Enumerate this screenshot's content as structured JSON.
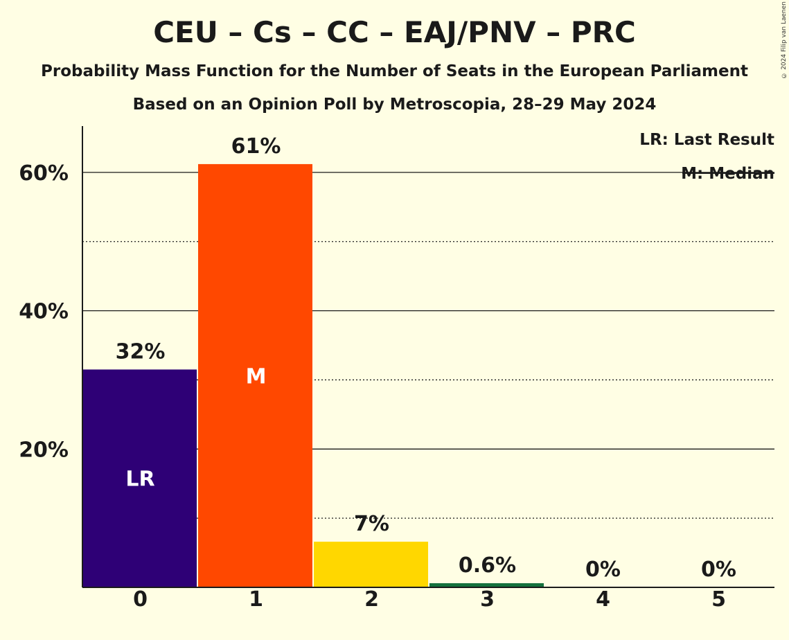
{
  "header": {
    "title": "CEU – Cs – CC – EAJ/PNV – PRC",
    "subtitle": "Probability Mass Function for the Number of Seats in the European Parliament",
    "subtitle2": "Based on an Opinion Poll by Metroscopia, 28–29 May 2024",
    "copyright": "© 2024 Filip van Laenen"
  },
  "legend": {
    "last_result": "LR: Last Result",
    "median": "M: Median"
  },
  "chart_data": {
    "type": "bar",
    "categories": [
      "0",
      "1",
      "2",
      "3",
      "4",
      "5"
    ],
    "values": [
      31.5,
      61.2,
      6.6,
      0.6,
      0,
      0
    ],
    "value_labels": [
      "32%",
      "61%",
      "7%",
      "0.6%",
      "0%",
      "0%"
    ],
    "bar_colors": [
      "#2E0076",
      "#FF4800",
      "#FFD700",
      "#14713D",
      "#2E0076",
      "#2E0076"
    ],
    "inside_labels": [
      "LR",
      "M",
      "",
      "",
      "",
      ""
    ],
    "ylim": [
      0,
      66.7
    ],
    "yticks": [
      {
        "value": 20,
        "label": "20%"
      },
      {
        "value": 40,
        "label": "40%"
      },
      {
        "value": 60,
        "label": "60%"
      }
    ],
    "minor_gridlines": [
      10,
      30,
      50
    ],
    "grid": true,
    "legend_position": "top-right"
  }
}
